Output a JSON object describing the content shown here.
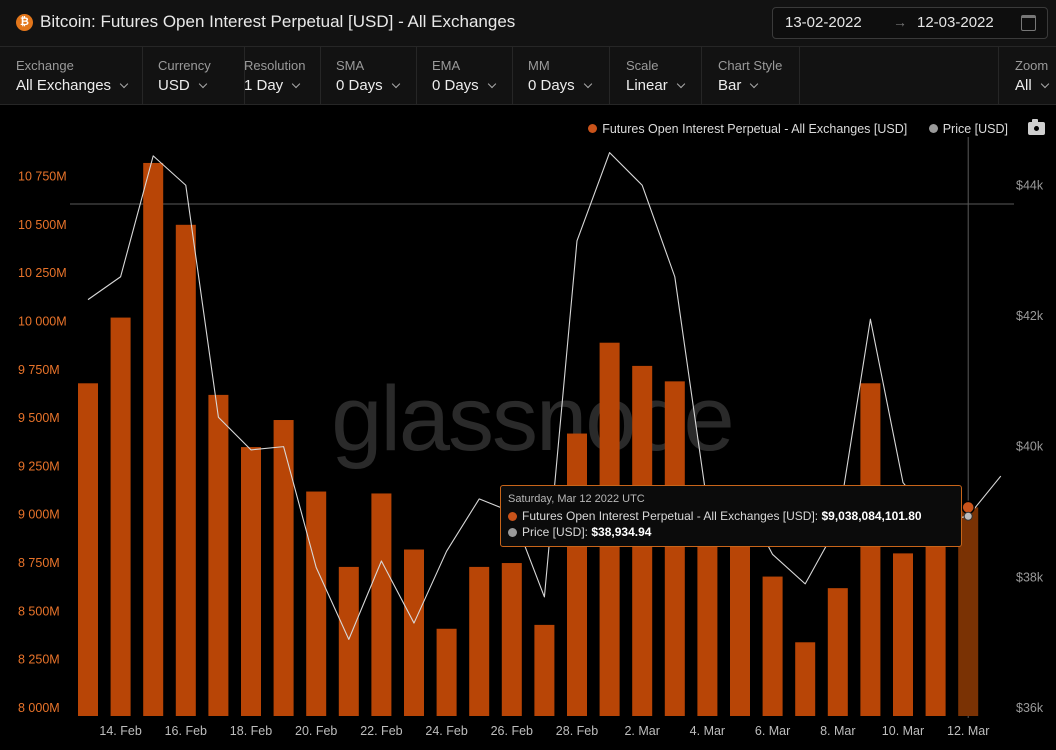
{
  "header": {
    "icon_glyph": "₿",
    "title": "Bitcoin: Futures Open Interest Perpetual [USD] - All Exchanges",
    "date_from": "13-02-2022",
    "date_arrow": "→",
    "date_to": "12-03-2022"
  },
  "controls": [
    {
      "label": "Exchange",
      "value": "All Exchanges"
    },
    {
      "label": "Currency",
      "value": "USD"
    },
    {
      "label": "Resolution",
      "value": "1 Day"
    },
    {
      "label": "SMA",
      "value": "0 Days"
    },
    {
      "label": "EMA",
      "value": "0 Days"
    },
    {
      "label": "MM",
      "value": "0 Days"
    },
    {
      "label": "Scale",
      "value": "Linear"
    },
    {
      "label": "Chart Style",
      "value": "Bar"
    },
    {
      "label": "Zoom",
      "value": "All"
    }
  ],
  "legend": {
    "oi_label": "Futures Open Interest Perpetual - All Exchanges [USD]",
    "price_label": "Price [USD]"
  },
  "watermark": "glassnode",
  "tooltip": {
    "date": "Saturday, Mar 12 2022 UTC",
    "oi_label": "Futures Open Interest Perpetual - All Exchanges [USD]:",
    "oi_value": "$9,038,084,101.80",
    "price_label": "Price [USD]:",
    "price_value": "$38,934.94"
  },
  "colors": {
    "bar": "#b84506",
    "bar_highlight": "#7a3204",
    "price_line": "#d8d8d8",
    "left_axis": "#e8732a",
    "right_axis": "#9a9a9a",
    "oi_dot": "#c9531a",
    "price_dot": "#9a9a9a"
  },
  "chart_data": {
    "type": "bar",
    "categories": [
      "13 Feb",
      "14 Feb",
      "15 Feb",
      "16 Feb",
      "17 Feb",
      "18 Feb",
      "19 Feb",
      "20 Feb",
      "21 Feb",
      "22 Feb",
      "23 Feb",
      "24 Feb",
      "25 Feb",
      "26 Feb",
      "27 Feb",
      "28 Feb",
      "1 Mar",
      "2 Mar",
      "3 Mar",
      "4 Mar",
      "5 Mar",
      "6 Mar",
      "7 Mar",
      "8 Mar",
      "9 Mar",
      "10 Mar",
      "11 Mar",
      "12 Mar"
    ],
    "x_tick_labels": [
      "14. Feb",
      "16. Feb",
      "18. Feb",
      "20. Feb",
      "22. Feb",
      "24. Feb",
      "26. Feb",
      "28. Feb",
      "2. Mar",
      "4. Mar",
      "6. Mar",
      "8. Mar",
      "10. Mar",
      "12. Mar"
    ],
    "x_tick_indices": [
      1,
      3,
      5,
      7,
      9,
      11,
      13,
      15,
      17,
      19,
      21,
      23,
      25,
      27
    ],
    "series": [
      {
        "name": "Futures Open Interest Perpetual - All Exchanges [USD]",
        "axis": "left",
        "values": [
          9680,
          10020,
          10820,
          10500,
          9620,
          9350,
          9490,
          9120,
          8730,
          9110,
          8820,
          8410,
          8730,
          8750,
          8430,
          9420,
          9890,
          9770,
          9690,
          8980,
          9110,
          8680,
          8340,
          8620,
          9680,
          8800,
          8890,
          9038
        ]
      },
      {
        "name": "Price [USD]",
        "axis": "right",
        "values": [
          42250,
          42600,
          44450,
          44000,
          40450,
          39950,
          40000,
          38150,
          37050,
          38250,
          37300,
          38400,
          39200,
          39000,
          37700,
          43150,
          44500,
          44000,
          42600,
          39100,
          39300,
          38350,
          37900,
          38800,
          41950,
          39450,
          38850,
          38935
        ]
      }
    ],
    "left_ticks": [
      "8 000M",
      "8 250M",
      "8 500M",
      "8 750M",
      "9 000M",
      "9 250M",
      "9 500M",
      "9 750M",
      "10 000M",
      "10 250M",
      "10 500M",
      "10 750M"
    ],
    "left_tick_values": [
      8000,
      8250,
      8500,
      8750,
      9000,
      9250,
      9500,
      9750,
      10000,
      10250,
      10500,
      10750
    ],
    "ylim_left": [
      8000,
      10975
    ],
    "right_ticks": [
      "$36k",
      "$38k",
      "$40k",
      "$42k",
      "$44k"
    ],
    "right_tick_values": [
      36000,
      38000,
      40000,
      42000,
      44000
    ],
    "ylim_right": [
      36000,
      44800
    ],
    "highlight_index": 27
  }
}
